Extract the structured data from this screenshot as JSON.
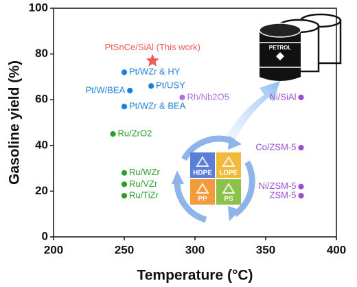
{
  "chart_data": {
    "type": "scatter",
    "x_label": "Temperature (°C)",
    "y_label": "Gasoline yield (%)",
    "xlim": [
      200,
      400
    ],
    "xticks": [
      200,
      250,
      300,
      350,
      400
    ],
    "ylim": [
      0,
      100
    ],
    "yticks": [
      0,
      20,
      40,
      60,
      80,
      100
    ],
    "series": [
      {
        "name": "PtSnCe/SiAl (This work)",
        "color": "#f05a5a",
        "marker": "star",
        "x": [
          270
        ],
        "values": [
          77
        ]
      },
      {
        "name": "Pt/WZr & HY",
        "color": "#1e7fd8",
        "marker": "circle",
        "x": [
          250
        ],
        "values": [
          72
        ]
      },
      {
        "name": "Pt/USY",
        "color": "#1e7fd8",
        "marker": "circle",
        "x": [
          269
        ],
        "values": [
          66
        ]
      },
      {
        "name": "Pt/W/BEA",
        "color": "#1e7fd8",
        "marker": "circle",
        "x": [
          254
        ],
        "values": [
          64
        ]
      },
      {
        "name": "Pt/WZr & BEA",
        "color": "#1e7fd8",
        "marker": "circle",
        "x": [
          250
        ],
        "values": [
          57
        ]
      },
      {
        "name": "Rh/Nb2O5",
        "color": "#b070e0",
        "marker": "circle",
        "x": [
          291
        ],
        "values": [
          61
        ]
      },
      {
        "name": "Ni/SiAl",
        "color": "#9a4fd0",
        "marker": "circle",
        "x": [
          375
        ],
        "values": [
          61
        ]
      },
      {
        "name": "Ru/ZrO2",
        "color": "#2aa02a",
        "marker": "circle",
        "x": [
          242
        ],
        "values": [
          45
        ]
      },
      {
        "name": "Co/ZSM-5",
        "color": "#9a4fd0",
        "marker": "circle",
        "x": [
          375
        ],
        "values": [
          39
        ]
      },
      {
        "name": "Ru/WZr",
        "color": "#2aa02a",
        "marker": "circle",
        "x": [
          250
        ],
        "values": [
          28
        ]
      },
      {
        "name": "Ru/VZr",
        "color": "#2aa02a",
        "marker": "circle",
        "x": [
          250
        ],
        "values": [
          23
        ]
      },
      {
        "name": "Ru/TiZr",
        "color": "#2aa02a",
        "marker": "circle",
        "x": [
          250
        ],
        "values": [
          18
        ]
      },
      {
        "name": "Ni/ZSM-5",
        "color": "#9a4fd0",
        "marker": "circle",
        "x": [
          375
        ],
        "values": [
          22
        ]
      },
      {
        "name": "ZSM-5",
        "color": "#9a4fd0",
        "marker": "circle",
        "x": [
          375
        ],
        "values": [
          18
        ]
      }
    ],
    "illustration": {
      "plastics": [
        "HDPE",
        "LDPE",
        "PP",
        "PS"
      ],
      "barrel_label": "PETROL"
    }
  }
}
